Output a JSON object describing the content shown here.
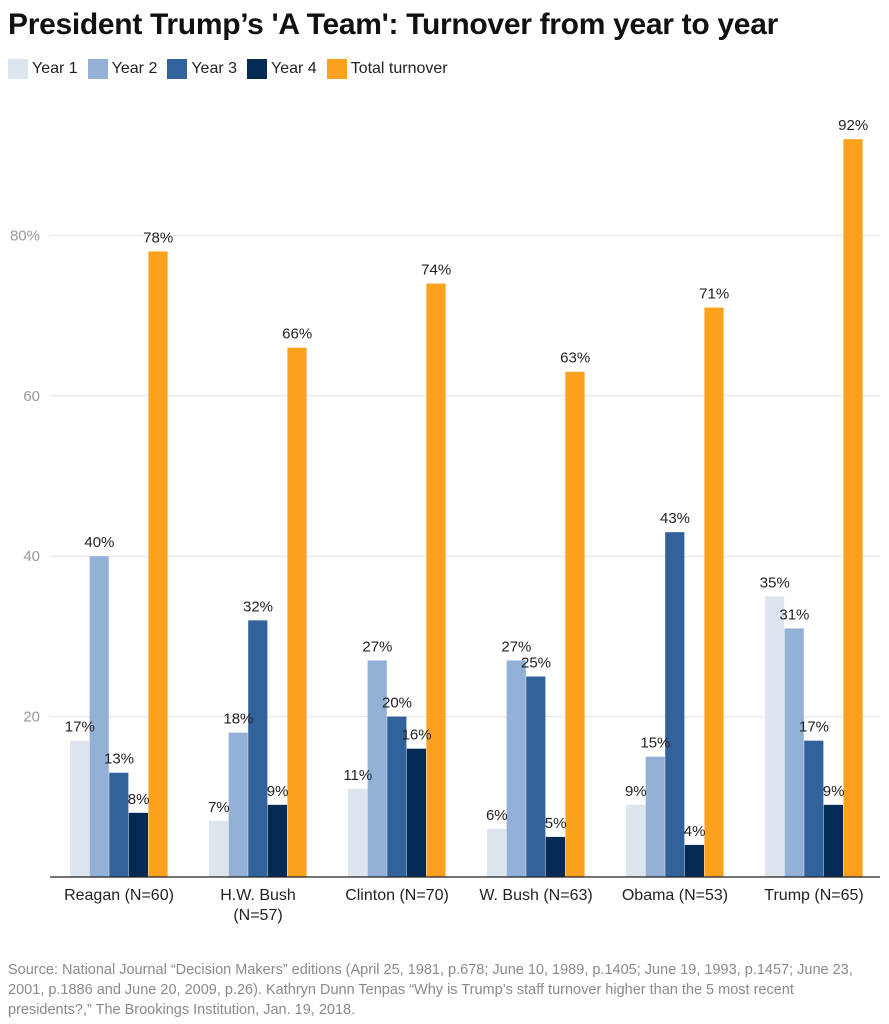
{
  "chart_data": {
    "type": "bar",
    "title": "President Trump’s 'A Team': Turnover from year to year",
    "categories": [
      "Reagan (N=60)",
      "H.W. Bush (N=57)",
      "Clinton (N=70)",
      "W. Bush (N=63)",
      "Obama (N=53)",
      "Trump (N=65)"
    ],
    "series": [
      {
        "name": "Year 1",
        "color": "#dde6ee",
        "values": [
          17,
          7,
          11,
          6,
          9,
          35
        ]
      },
      {
        "name": "Year 2",
        "color": "#93b1d6",
        "values": [
          40,
          18,
          27,
          27,
          15,
          31
        ]
      },
      {
        "name": "Year 3",
        "color": "#31629c",
        "values": [
          13,
          32,
          20,
          25,
          43,
          17
        ]
      },
      {
        "name": "Year 4",
        "color": "#032a52",
        "values": [
          8,
          9,
          16,
          5,
          4,
          9
        ]
      },
      {
        "name": "Total turnover",
        "color": "#fba11e",
        "values": [
          78,
          66,
          74,
          63,
          71,
          92
        ]
      }
    ],
    "yticks": [
      "20",
      "40",
      "60",
      "80%"
    ],
    "ytick_values": [
      20,
      40,
      60,
      80
    ],
    "ylim": [
      0,
      92
    ],
    "value_suffix": "%",
    "grid": true,
    "legend_position": "top-left"
  },
  "source": "Source: National Journal “Decision Makers” editions (April 25, 1981, p.678; June 10, 1989, p.1405; June 19, 1993, p.1457; June 23, 2001, p.1886 and June 20, 2009, p.26). Kathryn Dunn Tenpas “Why is Trump’s staff turnover higher than the 5 most recent presidents?,” The Brookings Institution, Jan. 19, 2018."
}
